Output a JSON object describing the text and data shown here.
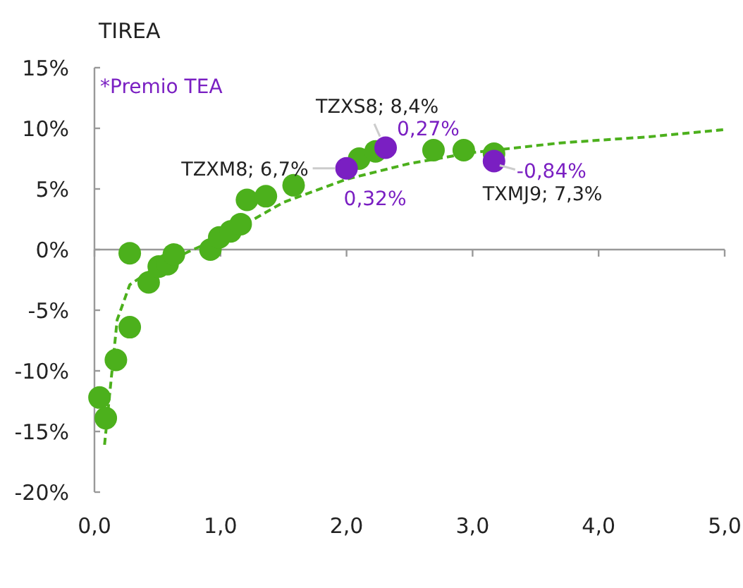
{
  "chart_data": {
    "type": "scatter",
    "ylabel": "TIREA",
    "marker": "circle",
    "xlim": [
      0,
      5
    ],
    "xticks": [
      {
        "value": 0,
        "label": "0,0"
      },
      {
        "value": 1,
        "label": "1,0"
      },
      {
        "value": 2,
        "label": "2,0"
      },
      {
        "value": 3,
        "label": "3,0"
      },
      {
        "value": 4,
        "label": "4,0"
      },
      {
        "value": 5,
        "label": "5,0"
      }
    ],
    "ylim": [
      -20,
      15
    ],
    "yticks": [
      {
        "value": -20,
        "label": "-20%"
      },
      {
        "value": -15,
        "label": "-15%"
      },
      {
        "value": -10,
        "label": "-10%"
      },
      {
        "value": -5,
        "label": "-5%"
      },
      {
        "value": 0,
        "label": "0%"
      },
      {
        "value": 5,
        "label": "5%"
      },
      {
        "value": 10,
        "label": "10%"
      },
      {
        "value": 15,
        "label": "15%"
      }
    ],
    "series": [
      {
        "type": "line",
        "color": "#4cb01c",
        "marker": "none",
        "line_style": "dashed",
        "x": [
          0.08,
          0.12,
          0.15,
          0.18,
          0.28,
          0.48,
          0.74,
          1.0,
          1.23,
          1.5,
          2.0,
          2.5,
          3.0,
          3.7,
          4.4,
          5.0
        ],
        "values": [
          -16.1,
          -12,
          -8.9,
          -5.8,
          -2.9,
          -1.5,
          -0.2,
          1.0,
          2.3,
          3.9,
          5.8,
          7.1,
          8.0,
          8.8,
          9.3,
          9.9
        ]
      },
      {
        "color": "#4cb01c",
        "x": [
          0.04,
          0.09,
          0.17,
          0.28,
          0.28,
          0.43,
          0.51,
          0.58,
          0.63,
          0.92,
          0.99,
          1.08,
          1.16,
          1.21,
          1.36,
          1.58,
          2.1,
          2.23,
          2.69,
          2.93,
          3.17
        ],
        "values": [
          -12.2,
          -13.9,
          -9.1,
          -6.4,
          -0.3,
          -2.7,
          -1.4,
          -1.2,
          -0.4,
          0.0,
          1.0,
          1.5,
          2.1,
          4.1,
          4.4,
          5.3,
          7.5,
          8.1,
          8.2,
          8.2,
          7.9
        ]
      },
      {
        "color": "#7a1fc2",
        "x": [
          2.0,
          2.31,
          3.17
        ],
        "values": [
          6.7,
          8.4,
          7.3
        ],
        "value_labels": [
          "TZXM8; 6,7%",
          "TZXS8; 8,4%",
          "TXMJ9; 7,3%"
        ]
      }
    ],
    "annotations": [
      "*Premio TEA",
      {
        "text": "0,32%",
        "x": 2.0,
        "y": 6.7
      },
      {
        "text": "0,27%",
        "x": 2.31,
        "y": 8.4
      },
      {
        "text": "-0,84%",
        "x": 3.17,
        "y": 7.3
      }
    ]
  }
}
